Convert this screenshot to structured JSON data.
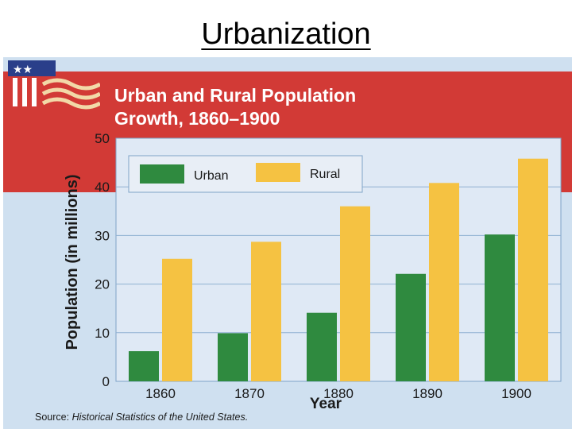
{
  "slide": {
    "title": "Urbanization"
  },
  "source": {
    "label": "Source:",
    "text": "Historical Statistics of the United States."
  },
  "colors": {
    "urban": "#2f8a3f",
    "rural": "#f5c242",
    "banner": "#d23a36",
    "panel": "#cfe0f0"
  },
  "chart_data": {
    "type": "bar",
    "title_lines": [
      "Urban and Rural Population",
      "Growth, 1860–1900"
    ],
    "categories": [
      "1860",
      "1870",
      "1880",
      "1890",
      "1900"
    ],
    "series": [
      {
        "name": "Urban",
        "values": [
          6.2,
          9.9,
          14.1,
          22.1,
          30.2
        ]
      },
      {
        "name": "Rural",
        "values": [
          25.2,
          28.7,
          36.0,
          40.8,
          45.8
        ]
      }
    ],
    "xlabel": "Year",
    "ylabel": "Population (in millions)",
    "ylim": [
      0,
      50
    ],
    "yticks": [
      0,
      10,
      20,
      30,
      40,
      50
    ],
    "grid": true,
    "legend_position": "top-left"
  }
}
